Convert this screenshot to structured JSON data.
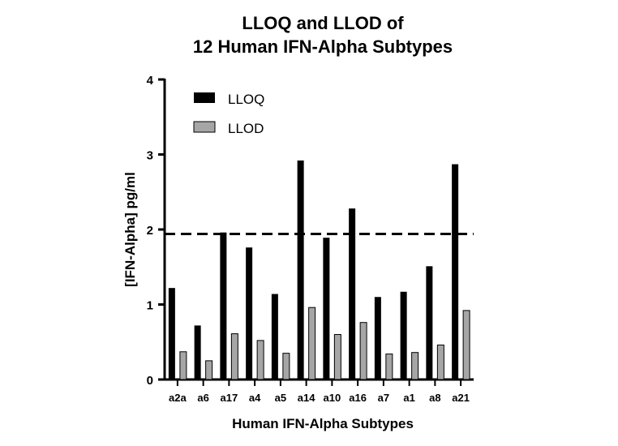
{
  "chart_data": {
    "type": "bar",
    "title_lines": [
      "LLOQ and LLOD of",
      "12 Human IFN-Alpha Subtypes"
    ],
    "xlabel": "Human IFN-Alpha Subtypes",
    "ylabel": "[IFN-Alpha] pg/ml",
    "ylim": [
      0,
      4
    ],
    "yticks": [
      "0",
      "1",
      "2",
      "3",
      "4"
    ],
    "categories": [
      "a2a",
      "a6",
      "a17",
      "a4",
      "a5",
      "a14",
      "a10",
      "a16",
      "a7",
      "a1",
      "a8",
      "a21"
    ],
    "series": [
      {
        "name": "LLOQ",
        "color": "#000000",
        "values": [
          1.22,
          0.72,
          1.96,
          1.76,
          1.14,
          2.92,
          1.89,
          2.28,
          1.1,
          1.17,
          1.51,
          2.87
        ]
      },
      {
        "name": "LLOD",
        "color": "#a6a6a6",
        "values": [
          0.37,
          0.25,
          0.61,
          0.52,
          0.35,
          0.96,
          0.6,
          0.76,
          0.34,
          0.36,
          0.46,
          0.92
        ]
      }
    ],
    "reference_line": {
      "value": 1.94,
      "style": "dashed"
    },
    "legend_position": "top-left",
    "grid": false
  }
}
